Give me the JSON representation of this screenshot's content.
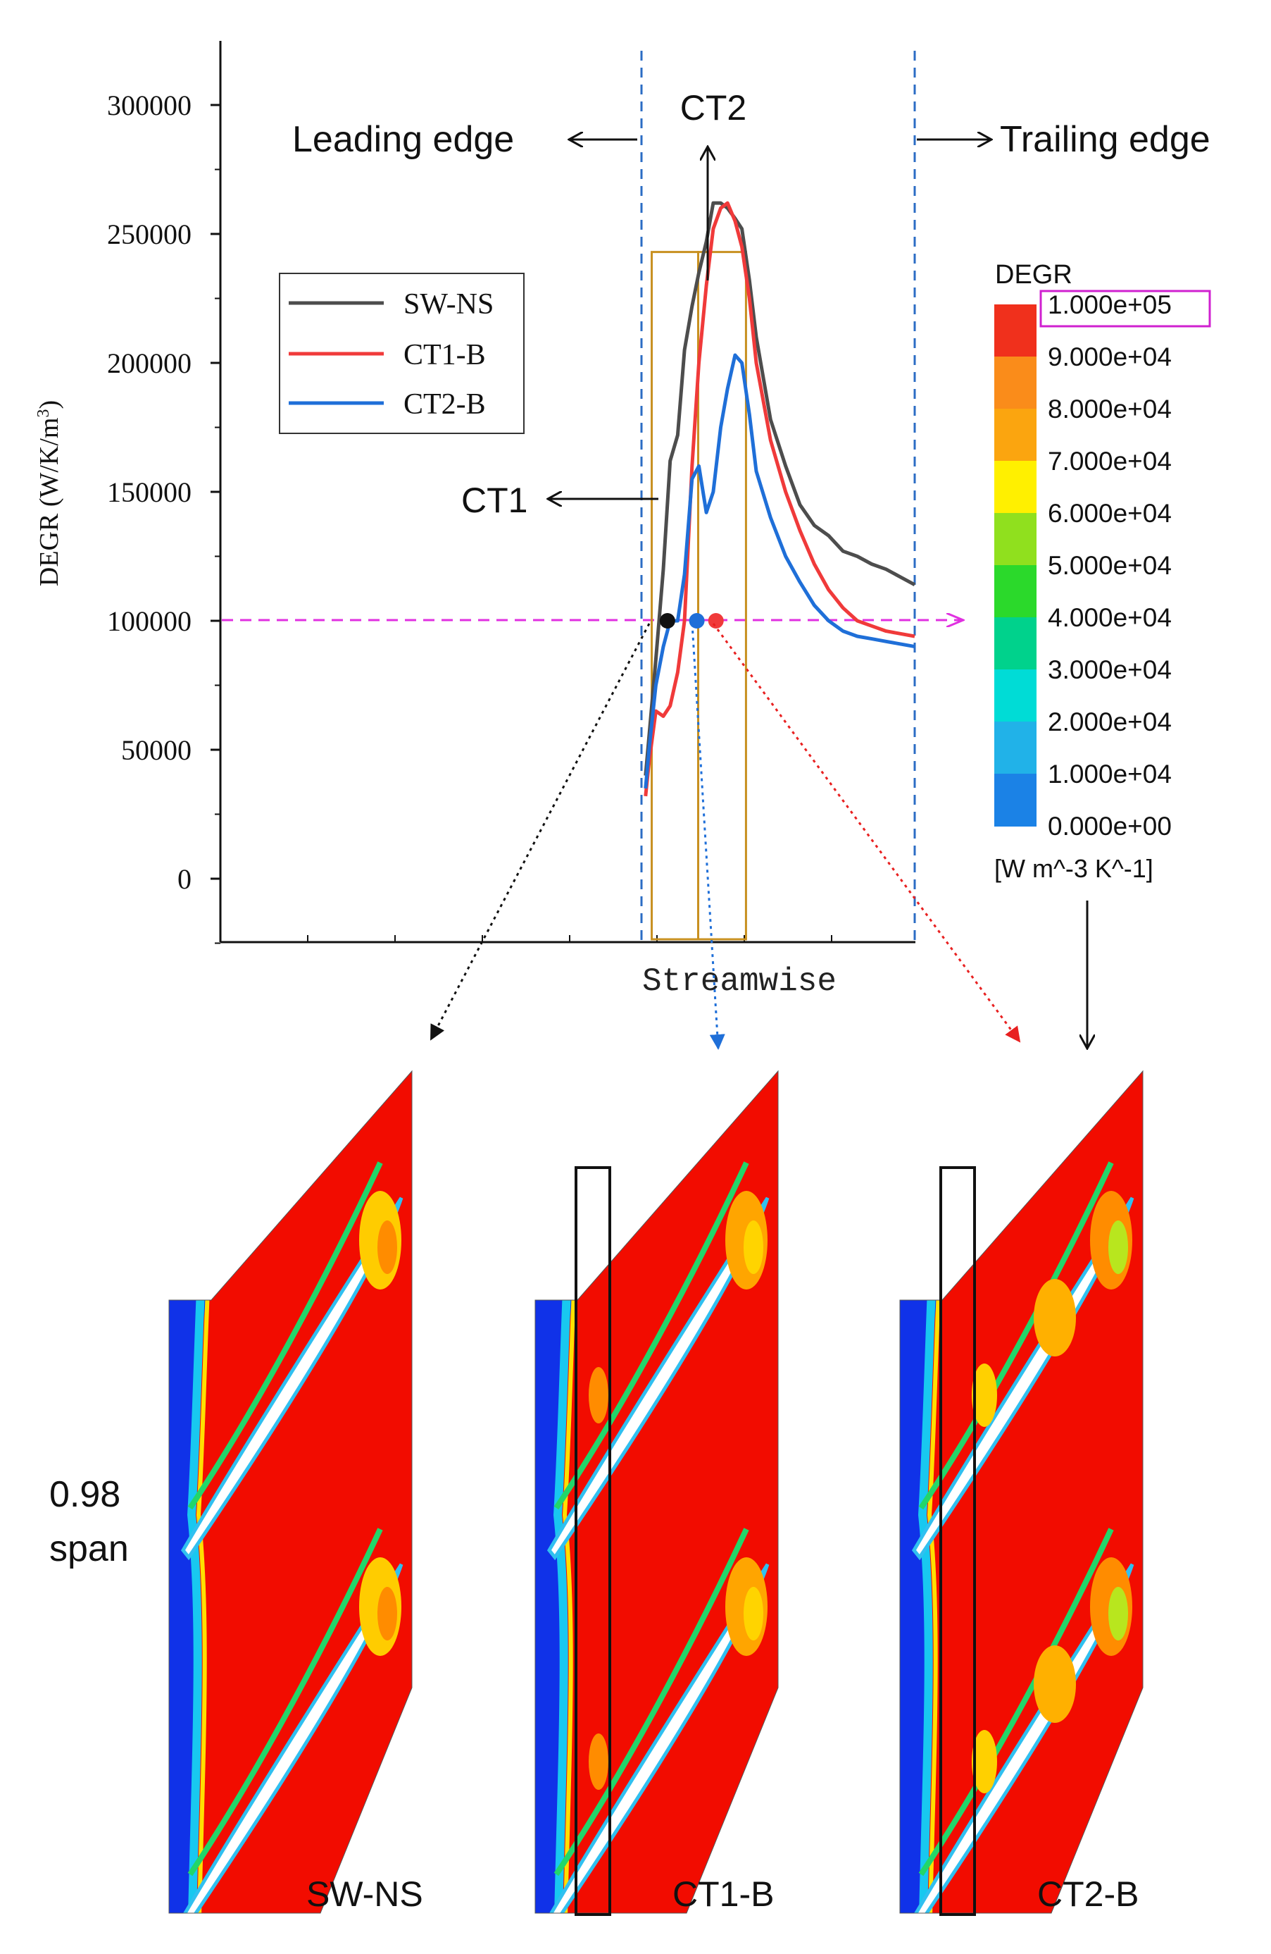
{
  "chart_data": {
    "type": "line",
    "title": "",
    "xlabel": "Streamwise",
    "ylabel": "DEGR (W/K/m³)",
    "ylabel_main": "DEGR (W/K/m",
    "ylabel_sup": "3",
    "ylabel_close": ")",
    "xlim": [
      0,
      100
    ],
    "ylim": [
      -25000,
      325000
    ],
    "y_ticks": [
      0,
      50000,
      100000,
      150000,
      200000,
      250000,
      300000
    ],
    "y_tick_labels": [
      "0",
      "50000",
      "100000",
      "150000",
      "200000",
      "250000",
      "300000"
    ],
    "legend_position": "left",
    "series": [
      {
        "name": "SW-NS",
        "color": "#4d4d4d",
        "x": [
          60.6,
          61.1,
          62.1,
          63.2,
          64.2,
          65.3,
          66.3,
          67.4,
          68.4,
          69.5,
          70.5,
          71.6,
          72.6,
          73.7,
          74.7,
          75.8,
          76.8,
          78.9,
          81.1,
          83.2,
          85.3,
          87.4,
          89.5,
          91.6,
          93.7,
          95.8,
          97.9,
          100
        ],
        "values": [
          40000,
          55000,
          85000,
          120000,
          162000,
          172000,
          205000,
          222000,
          235000,
          247000,
          262000,
          262000,
          260000,
          256000,
          252000,
          232000,
          210000,
          178000,
          160000,
          145000,
          137000,
          133000,
          127000,
          125000,
          122000,
          120000,
          117000,
          114000
        ]
      },
      {
        "name": "CT1-B",
        "color": "#f03a3a",
        "x": [
          60.6,
          61.1,
          62.1,
          63.2,
          64.2,
          65.3,
          66.3,
          67.4,
          68.4,
          69.5,
          70.5,
          71.6,
          72.6,
          73.7,
          74.7,
          75.8,
          76.8,
          78.9,
          81.1,
          83.2,
          85.3,
          87.4,
          89.5,
          91.6,
          93.7,
          95.8,
          97.9,
          100
        ],
        "values": [
          32000,
          45000,
          65000,
          63000,
          67000,
          80000,
          100000,
          160000,
          200000,
          230000,
          252000,
          260000,
          262000,
          255000,
          245000,
          225000,
          200000,
          170000,
          150000,
          135000,
          122000,
          112000,
          105000,
          100000,
          98000,
          96000,
          95000,
          94000
        ]
      },
      {
        "name": "CT2-B",
        "color": "#1f6fd8",
        "x": [
          60.6,
          61.1,
          62.1,
          63.2,
          64.2,
          65.3,
          66.3,
          67.4,
          68.4,
          69.5,
          70.5,
          71.6,
          72.6,
          73.7,
          74.7,
          75.8,
          76.8,
          78.9,
          81.1,
          83.2,
          85.3,
          87.4,
          89.5,
          91.6,
          93.7,
          95.8,
          97.9,
          100
        ],
        "values": [
          35000,
          50000,
          75000,
          90000,
          100000,
          100000,
          118000,
          155000,
          160000,
          142000,
          150000,
          175000,
          190000,
          203000,
          200000,
          180000,
          158000,
          140000,
          125000,
          115000,
          106000,
          100000,
          96000,
          94000,
          93000,
          92000,
          91000,
          90000
        ]
      }
    ],
    "annotations": {
      "leading_edge": "Leading edge",
      "trailing_edge": "Trailing edge",
      "ct1": "CT1",
      "ct2": "CT2",
      "threshold_value": 100000,
      "leading_edge_x": 60,
      "trailing_edge_x": 100,
      "ct1_box_x": [
        61.5,
        68.3
      ],
      "ct2_box_x": [
        68.3,
        75.3
      ],
      "ct_box_top": 243000,
      "marker_sw_ns_x": 63.8,
      "marker_ct2_x": 68.1,
      "marker_ct1_x": 70.9
    }
  },
  "colorbar": {
    "title": "DEGR",
    "unit": "[W m^-3 K^-1]",
    "labels": [
      "1.000e+05",
      "9.000e+04",
      "8.000e+04",
      "7.000e+04",
      "6.000e+04",
      "5.000e+04",
      "4.000e+04",
      "3.000e+04",
      "2.000e+04",
      "1.000e+04",
      "0.000e+00"
    ],
    "colors": [
      "#f0301c",
      "#fa8c1a",
      "#fba50f",
      "#fff000",
      "#90e01e",
      "#2bd92b",
      "#00d28c",
      "#00dcd6",
      "#21b2e8",
      "#1b82e6",
      "#0a32e6"
    ],
    "highlight_color": "#d020d0"
  },
  "contour_panels": {
    "span_label_value": "0.98",
    "span_label_word": "span",
    "labels": [
      "SW-NS",
      "CT1-B",
      "CT2-B"
    ]
  }
}
